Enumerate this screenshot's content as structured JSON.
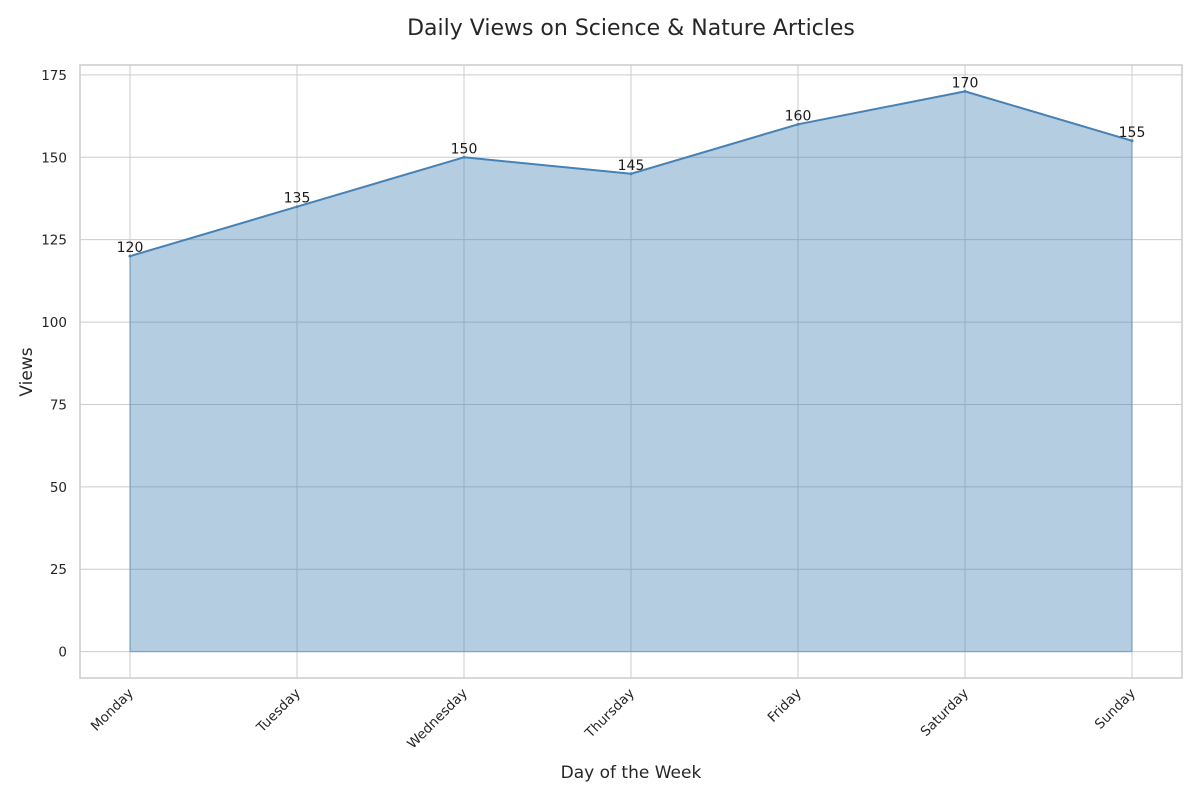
{
  "chart_data": {
    "type": "area",
    "title": "Daily Views on Science & Nature Articles",
    "xlabel": "Day of the Week",
    "ylabel": "Views",
    "categories": [
      "Monday",
      "Tuesday",
      "Wednesday",
      "Thursday",
      "Friday",
      "Saturday",
      "Sunday"
    ],
    "values": [
      120,
      135,
      150,
      145,
      160,
      170,
      155
    ],
    "data_labels": [
      "120",
      "135",
      "150",
      "145",
      "160",
      "170",
      "155"
    ],
    "ylim": [
      -8,
      178
    ],
    "yticks": [
      0,
      25,
      50,
      75,
      100,
      125,
      150,
      175
    ],
    "ytick_labels": [
      "0",
      "25",
      "50",
      "75",
      "100",
      "125",
      "150",
      "175"
    ],
    "grid": true,
    "colors": {
      "line": "#4682b4",
      "fill": "#4682b4",
      "grid": "#cccccc",
      "frame": "#cccccc",
      "text": "#262626"
    }
  }
}
